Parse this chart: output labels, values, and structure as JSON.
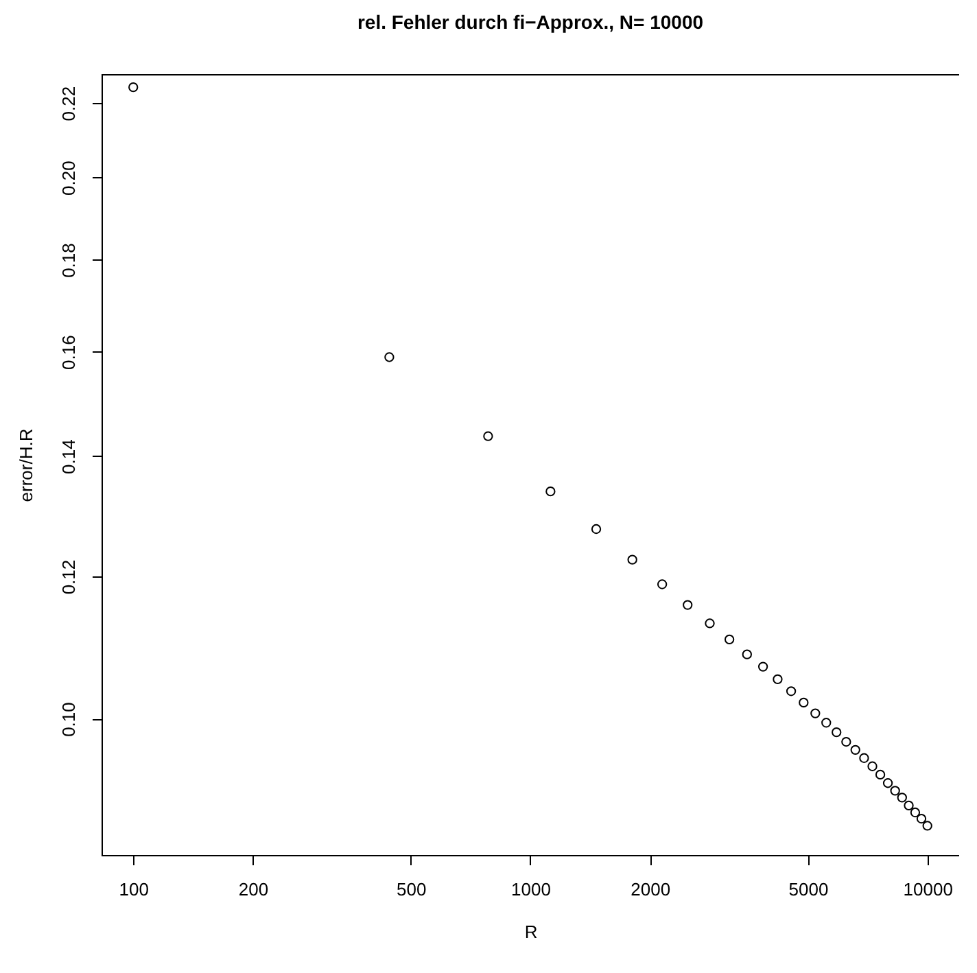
{
  "chart_data": {
    "type": "scatter",
    "title": "rel. Fehler durch fi−Approx., N= 10000",
    "xlabel": "R",
    "ylabel": "error/H.R",
    "x": [
      100,
      441.4,
      782.8,
      1124.1,
      1465.5,
      1806.9,
      2148.3,
      2489.7,
      2831.0,
      3172.4,
      3513.8,
      3855.2,
      4196.6,
      4537.9,
      4879.3,
      5220.7,
      5562.1,
      5903.4,
      6244.8,
      6586.2,
      6927.6,
      7269.0,
      7610.3,
      7951.7,
      8293.1,
      8634.5,
      8975.9,
      9317.2,
      9658.6,
      10000
    ],
    "series": [
      {
        "color": "#000000",
        "values": [
          0.2245,
          0.1589,
          0.1436,
          0.1338,
          0.1275,
          0.1226,
          0.1188,
          0.1157,
          0.113,
          0.1107,
          0.1086,
          0.1069,
          0.1052,
          0.1036,
          0.1021,
          0.1007,
          0.0995,
          0.0983,
          0.0971,
          0.0961,
          0.0951,
          0.0941,
          0.0931,
          0.0921,
          0.0912,
          0.0904,
          0.0895,
          0.0887,
          0.088,
          0.0872
        ]
      }
    ],
    "log": "xy",
    "xlim": [
      83.2,
      12023
    ],
    "ylim": [
      0.084,
      0.2283
    ],
    "xticks": [
      100,
      200,
      500,
      1000,
      2000,
      5000,
      10000
    ],
    "yticks": [
      {
        "value": 0.1,
        "label": "0.10"
      },
      0.12,
      0.14,
      0.16,
      0.18,
      {
        "value": 0.2,
        "label": "0.20"
      },
      0.22
    ],
    "marker": "circle",
    "grid": false,
    "legend": false
  }
}
